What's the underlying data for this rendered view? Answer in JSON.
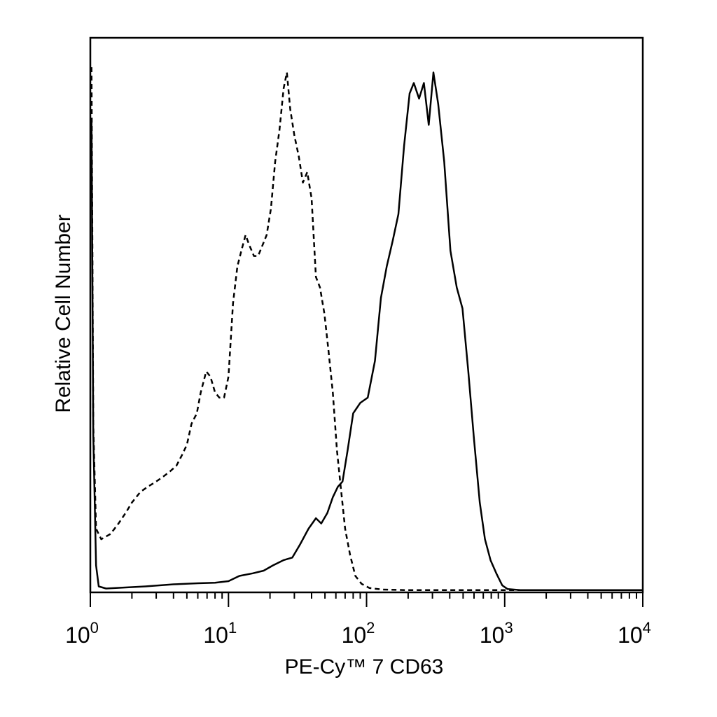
{
  "chart_data": {
    "type": "line",
    "title": "",
    "xlabel": "PE-Cy™ 7 CD63",
    "ylabel": "Relative Cell Number",
    "x_scale": "log",
    "xlim": [
      1,
      10000
    ],
    "ylim": [
      0,
      1
    ],
    "grid": false,
    "legend": "none",
    "x_ticks": [
      {
        "value": 1,
        "base": "10",
        "exp": "0"
      },
      {
        "value": 10,
        "base": "10",
        "exp": "1"
      },
      {
        "value": 100,
        "base": "10",
        "exp": "2"
      },
      {
        "value": 1000,
        "base": "10",
        "exp": "3"
      },
      {
        "value": 10000,
        "base": "10",
        "exp": "4"
      }
    ],
    "series": [
      {
        "style": "dashed",
        "points": [
          [
            1.02,
            1.0
          ],
          [
            1.05,
            0.32
          ],
          [
            1.1,
            0.12
          ],
          [
            1.2,
            0.1
          ],
          [
            1.4,
            0.11
          ],
          [
            1.6,
            0.13
          ],
          [
            1.8,
            0.15
          ],
          [
            2.0,
            0.17
          ],
          [
            2.3,
            0.19
          ],
          [
            2.6,
            0.2
          ],
          [
            3.0,
            0.21
          ],
          [
            3.4,
            0.22
          ],
          [
            3.8,
            0.23
          ],
          [
            4.2,
            0.24
          ],
          [
            4.6,
            0.26
          ],
          [
            5.0,
            0.28
          ],
          [
            5.4,
            0.32
          ],
          [
            5.9,
            0.34
          ],
          [
            6.3,
            0.38
          ],
          [
            6.9,
            0.42
          ],
          [
            7.4,
            0.41
          ],
          [
            8.0,
            0.38
          ],
          [
            8.6,
            0.37
          ],
          [
            9.3,
            0.37
          ],
          [
            10.0,
            0.41
          ],
          [
            10.8,
            0.55
          ],
          [
            11.6,
            0.62
          ],
          [
            12.4,
            0.65
          ],
          [
            13.3,
            0.68
          ],
          [
            14.2,
            0.66
          ],
          [
            15.3,
            0.64
          ],
          [
            16.4,
            0.64
          ],
          [
            17.6,
            0.66
          ],
          [
            18.9,
            0.68
          ],
          [
            20.3,
            0.73
          ],
          [
            21.8,
            0.82
          ],
          [
            23.4,
            0.88
          ],
          [
            25.1,
            0.96
          ],
          [
            26.5,
            0.99
          ],
          [
            28.0,
            0.92
          ],
          [
            30.0,
            0.87
          ],
          [
            32.3,
            0.83
          ],
          [
            34.6,
            0.78
          ],
          [
            37.2,
            0.8
          ],
          [
            40.0,
            0.75
          ],
          [
            43.0,
            0.6
          ],
          [
            46.0,
            0.58
          ],
          [
            49.5,
            0.53
          ],
          [
            53.0,
            0.46
          ],
          [
            57.0,
            0.38
          ],
          [
            61.0,
            0.27
          ],
          [
            65.0,
            0.2
          ],
          [
            70.0,
            0.12
          ],
          [
            76.0,
            0.07
          ],
          [
            83.0,
            0.03
          ],
          [
            92.0,
            0.015
          ],
          [
            105.0,
            0.007
          ],
          [
            130.0,
            0.004
          ],
          [
            200.0,
            0.003
          ],
          [
            10000.0,
            0.003
          ]
        ]
      },
      {
        "style": "solid",
        "points": [
          [
            1.02,
            0.9
          ],
          [
            1.05,
            0.3
          ],
          [
            1.1,
            0.05
          ],
          [
            1.15,
            0.01
          ],
          [
            1.3,
            0.006
          ],
          [
            1.8,
            0.008
          ],
          [
            2.5,
            0.01
          ],
          [
            4.0,
            0.014
          ],
          [
            6.0,
            0.016
          ],
          [
            8.0,
            0.017
          ],
          [
            10.0,
            0.02
          ],
          [
            12.0,
            0.03
          ],
          [
            15.0,
            0.035
          ],
          [
            18.0,
            0.04
          ],
          [
            21.0,
            0.05
          ],
          [
            25.0,
            0.06
          ],
          [
            29.0,
            0.065
          ],
          [
            33.0,
            0.09
          ],
          [
            38.0,
            0.12
          ],
          [
            43.0,
            0.14
          ],
          [
            47.0,
            0.13
          ],
          [
            52.0,
            0.15
          ],
          [
            57.0,
            0.18
          ],
          [
            62.0,
            0.2
          ],
          [
            67.0,
            0.21
          ],
          [
            73.0,
            0.27
          ],
          [
            80.0,
            0.34
          ],
          [
            90.0,
            0.36
          ],
          [
            102.0,
            0.37
          ],
          [
            115.0,
            0.44
          ],
          [
            127.0,
            0.56
          ],
          [
            140.0,
            0.62
          ],
          [
            155.0,
            0.67
          ],
          [
            170.0,
            0.72
          ],
          [
            187.0,
            0.85
          ],
          [
            205.0,
            0.95
          ],
          [
            220.0,
            0.97
          ],
          [
            240.0,
            0.94
          ],
          [
            260.0,
            0.97
          ],
          [
            282.0,
            0.89
          ],
          [
            305.0,
            0.99
          ],
          [
            330.0,
            0.93
          ],
          [
            365.0,
            0.82
          ],
          [
            405.0,
            0.65
          ],
          [
            450.0,
            0.58
          ],
          [
            495.0,
            0.54
          ],
          [
            545.0,
            0.42
          ],
          [
            600.0,
            0.29
          ],
          [
            660.0,
            0.17
          ],
          [
            720.0,
            0.1
          ],
          [
            790.0,
            0.06
          ],
          [
            870.0,
            0.035
          ],
          [
            960.0,
            0.012
          ],
          [
            1050.0,
            0.005
          ],
          [
            1300.0,
            0.003
          ],
          [
            10000.0,
            0.003
          ]
        ]
      }
    ]
  }
}
